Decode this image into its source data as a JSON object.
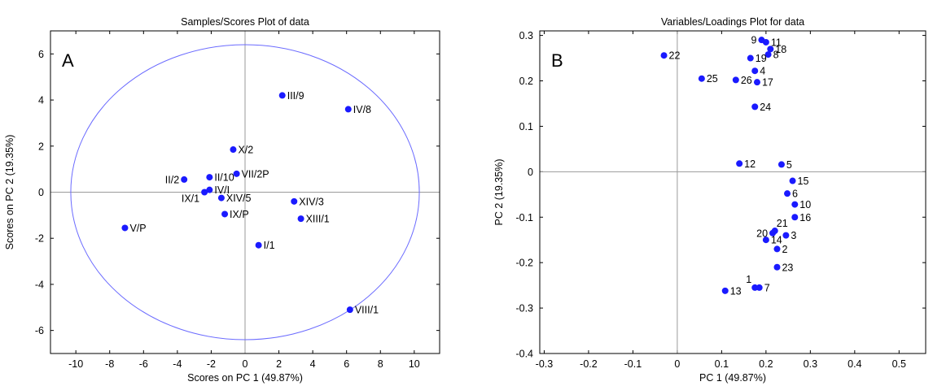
{
  "colors": {
    "point": "#1a1aff",
    "ellipse": "#6b6bff",
    "zero_line": "#9a9a9a"
  },
  "chart_data": [
    {
      "type": "scatter",
      "panel": "A",
      "title": "Samples/Scores Plot of data",
      "xlabel": "Scores on PC 1 (49.87%)",
      "ylabel": "Scores on PC 2 (19.35%)",
      "xlim": [
        -11.5,
        11.5
      ],
      "ylim": [
        -7,
        7
      ],
      "xticks": [
        -10,
        -8,
        -6,
        -4,
        -2,
        0,
        2,
        4,
        6,
        8,
        10
      ],
      "yticks": [
        -6,
        -4,
        -2,
        0,
        2,
        4,
        6
      ],
      "zero_lines": true,
      "confidence_ellipse": {
        "cx": 0,
        "cy": 0,
        "rx": 10.3,
        "ry": 6.4
      },
      "points": [
        {
          "label": "III/9",
          "x": 2.2,
          "y": 4.2
        },
        {
          "label": "IV/8",
          "x": 6.1,
          "y": 3.6
        },
        {
          "label": "X/2",
          "x": -0.7,
          "y": 1.85
        },
        {
          "label": "II/10",
          "x": -2.1,
          "y": 0.65
        },
        {
          "label": "VII/2P",
          "x": -0.5,
          "y": 0.8
        },
        {
          "label": "II/2",
          "x": -3.6,
          "y": 0.55
        },
        {
          "label": "IV/I",
          "x": -2.1,
          "y": 0.1
        },
        {
          "label": "IX/1",
          "x": -2.4,
          "y": 0.0
        },
        {
          "label": "XIV/5",
          "x": -1.4,
          "y": -0.25
        },
        {
          "label": "XIV/3",
          "x": 2.9,
          "y": -0.4
        },
        {
          "label": "IX/P",
          "x": -1.2,
          "y": -0.95
        },
        {
          "label": "XIII/1",
          "x": 3.3,
          "y": -1.15
        },
        {
          "label": "V/P",
          "x": -7.1,
          "y": -1.55
        },
        {
          "label": "I/1",
          "x": 0.8,
          "y": -2.3
        },
        {
          "label": "VIII/1",
          "x": 6.2,
          "y": -5.1
        }
      ]
    },
    {
      "type": "scatter",
      "panel": "B",
      "title": "Variables/Loadings Plot for data",
      "xlabel": "PC 1 (49.87%)",
      "ylabel": "PC 2 (19.35%)",
      "xlim": [
        -0.31,
        0.56
      ],
      "ylim": [
        -0.4,
        0.31
      ],
      "xticks": [
        -0.3,
        -0.2,
        -0.1,
        0,
        0.1,
        0.2,
        0.3,
        0.4,
        0.5
      ],
      "yticks": [
        -0.4,
        -0.3,
        -0.2,
        -0.1,
        0,
        0.1,
        0.2,
        0.3
      ],
      "zero_lines": true,
      "points": [
        {
          "label": "9",
          "x": 0.19,
          "y": 0.29
        },
        {
          "label": "11",
          "x": 0.2,
          "y": 0.285
        },
        {
          "label": "18",
          "x": 0.21,
          "y": 0.27
        },
        {
          "label": "8",
          "x": 0.205,
          "y": 0.258
        },
        {
          "label": "22",
          "x": -0.03,
          "y": 0.256
        },
        {
          "label": "19",
          "x": 0.165,
          "y": 0.25
        },
        {
          "label": "4",
          "x": 0.175,
          "y": 0.222
        },
        {
          "label": "25",
          "x": 0.055,
          "y": 0.205
        },
        {
          "label": "26",
          "x": 0.132,
          "y": 0.202
        },
        {
          "label": "17",
          "x": 0.18,
          "y": 0.197
        },
        {
          "label": "24",
          "x": 0.175,
          "y": 0.143
        },
        {
          "label": "12",
          "x": 0.14,
          "y": 0.018
        },
        {
          "label": "5",
          "x": 0.235,
          "y": 0.016
        },
        {
          "label": "15",
          "x": 0.26,
          "y": -0.02
        },
        {
          "label": "6",
          "x": 0.248,
          "y": -0.048
        },
        {
          "label": "10",
          "x": 0.265,
          "y": -0.072
        },
        {
          "label": "16",
          "x": 0.265,
          "y": -0.1
        },
        {
          "label": "21",
          "x": 0.22,
          "y": -0.13
        },
        {
          "label": "20",
          "x": 0.215,
          "y": -0.135
        },
        {
          "label": "3",
          "x": 0.245,
          "y": -0.14
        },
        {
          "label": "14",
          "x": 0.2,
          "y": -0.15
        },
        {
          "label": "2",
          "x": 0.225,
          "y": -0.17
        },
        {
          "label": "23",
          "x": 0.225,
          "y": -0.21
        },
        {
          "label": "1",
          "x": 0.175,
          "y": -0.255
        },
        {
          "label": "7",
          "x": 0.185,
          "y": -0.255
        },
        {
          "label": "13",
          "x": 0.108,
          "y": -0.262
        }
      ]
    }
  ]
}
